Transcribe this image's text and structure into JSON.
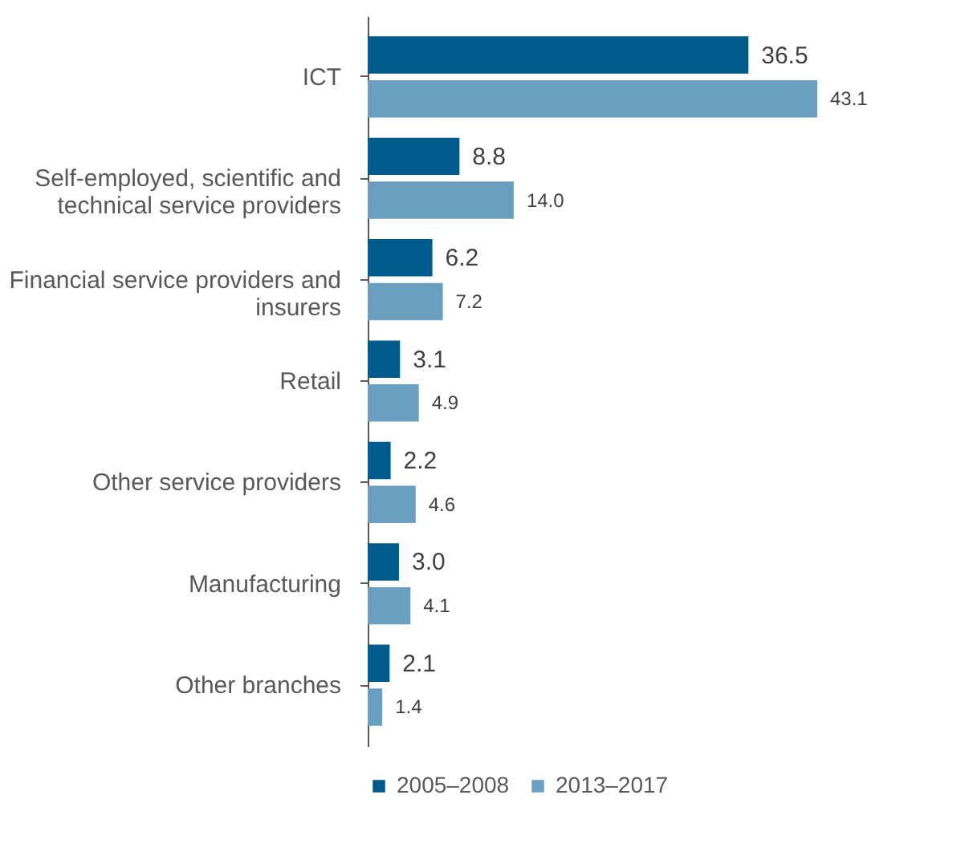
{
  "chart_data": {
    "type": "bar",
    "orientation": "horizontal",
    "categories": [
      "ICT",
      "Self-employed, scientific and technical service providers",
      "Financial service providers and insurers",
      "Retail",
      "Other service providers",
      "Manufacturing",
      "Other branches"
    ],
    "series": [
      {
        "name": "2005–2008",
        "color": "#005a8c",
        "values": [
          36.5,
          8.8,
          6.2,
          3.1,
          2.2,
          3.0,
          2.1
        ],
        "value_labels": [
          "36.5",
          "8.8",
          "6.2",
          "3.1",
          "2.2",
          "3.0",
          "2.1"
        ]
      },
      {
        "name": "2013–2017",
        "color": "#6a9fbf",
        "values": [
          43.1,
          14.0,
          7.2,
          4.9,
          4.6,
          4.1,
          1.4
        ],
        "value_labels": [
          "43.1",
          "14.0",
          "7.2",
          "4.9",
          "4.6",
          "4.1",
          "1.4"
        ]
      }
    ],
    "legend": "bottom left",
    "grid": false
  }
}
